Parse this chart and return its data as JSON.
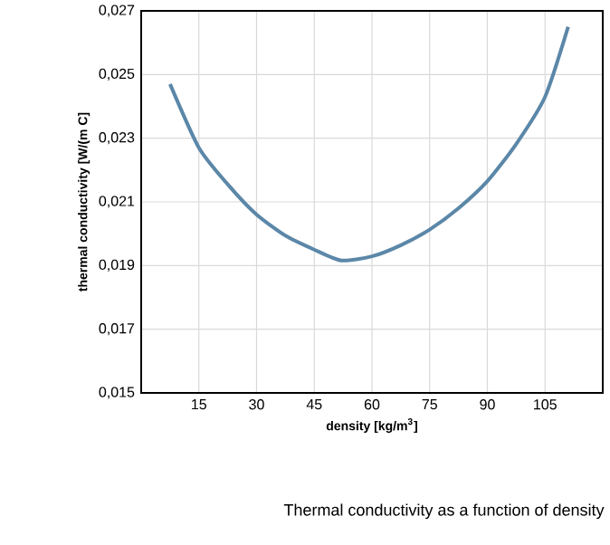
{
  "chart_data": {
    "type": "line",
    "xlabel": "density  [kg/m$^{3}$]",
    "ylabel": "thermal conductivity [W/(m C]",
    "annotations": [
      "Thermal conductivity as a function of density"
    ],
    "x": [
      7.5,
      15,
      22.5,
      30,
      37.5,
      45,
      52,
      60,
      67.5,
      75,
      82.5,
      90,
      97.5,
      105,
      111
    ],
    "series": [
      {
        "color": "#5b87a8",
        "values": [
          0.0247,
          0.0227,
          0.02155,
          0.0206,
          0.01994,
          0.0195,
          0.01916,
          0.01929,
          0.01964,
          0.02013,
          0.0208,
          0.02165,
          0.02282,
          0.0243,
          0.0265
        ]
      }
    ],
    "xlim": [
      0,
      120
    ],
    "xticks": [
      15,
      30,
      45,
      60,
      75,
      90,
      105
    ],
    "ylim": [
      0.015,
      0.027
    ],
    "yticks": [
      {
        "value": 0.015,
        "label": "0,015"
      },
      {
        "value": 0.017,
        "label": "0,017"
      },
      {
        "value": 0.019,
        "label": "0,019"
      },
      {
        "value": 0.021,
        "label": "0,021"
      },
      {
        "value": 0.023,
        "label": "0,023"
      },
      {
        "value": 0.025,
        "label": "0,025"
      },
      {
        "value": 0.027,
        "label": "0,027"
      }
    ],
    "grid": true,
    "marker": "none",
    "line_style": "solid"
  }
}
